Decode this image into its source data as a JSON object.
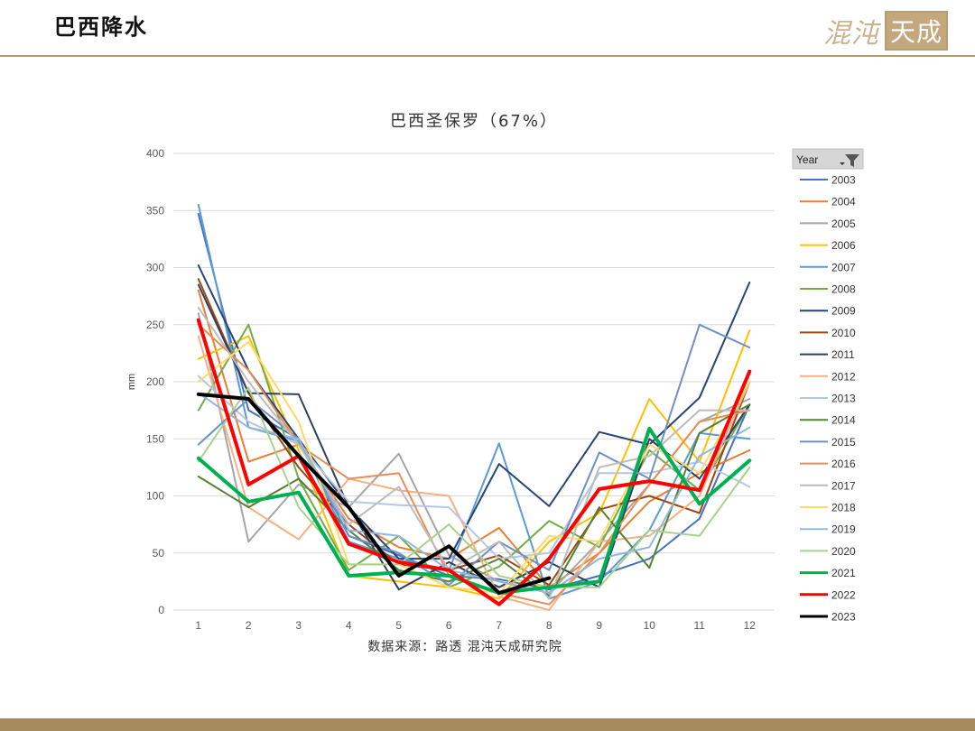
{
  "page": {
    "title": "巴西降水",
    "brand_script": "混沌",
    "brand_box": "天成"
  },
  "chart_data": {
    "type": "line",
    "title": "巴西圣保罗（67%）",
    "xlabel": "",
    "ylabel": "mm",
    "x": [
      1,
      2,
      3,
      4,
      5,
      6,
      7,
      8,
      9,
      10,
      11,
      12
    ],
    "ylim": [
      0,
      400
    ],
    "yticks": [
      0,
      50,
      100,
      150,
      200,
      250,
      300,
      350,
      400
    ],
    "grid": true,
    "legend_position": "right",
    "legend_header": "Year",
    "source": "数据来源：路透  混沌天成研究院",
    "series": [
      {
        "name": "2003",
        "color": "#4472c4",
        "width": 2,
        "values": [
          347,
          175,
          150,
          65,
          48,
          30,
          27,
          18,
          30,
          45,
          80,
          180
        ]
      },
      {
        "name": "2004",
        "color": "#ed7d31",
        "width": 2,
        "values": [
          280,
          130,
          145,
          80,
          55,
          45,
          72,
          20,
          50,
          95,
          120,
          140
        ]
      },
      {
        "name": "2005",
        "color": "#a5a5a5",
        "width": 2,
        "values": [
          260,
          60,
          110,
          90,
          137,
          48,
          25,
          15,
          60,
          110,
          165,
          185
        ]
      },
      {
        "name": "2006",
        "color": "#ffc000",
        "width": 2,
        "values": [
          220,
          240,
          140,
          30,
          25,
          20,
          10,
          60,
          85,
          185,
          130,
          245
        ]
      },
      {
        "name": "2007",
        "color": "#5b9bd5",
        "width": 2,
        "values": [
          355,
          160,
          148,
          60,
          45,
          35,
          146,
          10,
          25,
          70,
          155,
          150
        ]
      },
      {
        "name": "2008",
        "color": "#70ad47",
        "width": 2,
        "values": [
          175,
          250,
          115,
          35,
          65,
          20,
          38,
          78,
          55,
          140,
          105,
          180
        ]
      },
      {
        "name": "2009",
        "color": "#264478",
        "width": 2,
        "values": [
          302,
          210,
          150,
          90,
          45,
          45,
          128,
          91,
          156,
          145,
          186,
          287
        ]
      },
      {
        "name": "2010",
        "color": "#9e480e",
        "width": 2,
        "values": [
          290,
          190,
          125,
          75,
          40,
          35,
          48,
          22,
          88,
          100,
          85,
          200
        ]
      },
      {
        "name": "2011",
        "color": "#2f3f5f",
        "width": 2,
        "values": [
          285,
          190,
          189,
          90,
          18,
          42,
          20,
          42,
          20,
          150,
          115,
          180
        ]
      },
      {
        "name": "2012",
        "color": "#f4b183",
        "width": 2,
        "values": [
          240,
          90,
          62,
          115,
          105,
          100,
          12,
          0,
          60,
          65,
          100,
          200
        ]
      },
      {
        "name": "2013",
        "color": "#b4c7e7",
        "width": 2,
        "values": [
          205,
          165,
          145,
          95,
          92,
          90,
          45,
          50,
          120,
          120,
          130,
          108
        ]
      },
      {
        "name": "2014",
        "color": "#548235",
        "width": 2,
        "values": [
          117,
          90,
          115,
          70,
          35,
          25,
          45,
          12,
          90,
          37,
          155,
          180
        ]
      },
      {
        "name": "2015",
        "color": "#6e8fc9",
        "width": 2,
        "values": [
          145,
          185,
          150,
          65,
          50,
          22,
          60,
          35,
          138,
          115,
          250,
          230
        ]
      },
      {
        "name": "2016",
        "color": "#e88d55",
        "width": 2,
        "values": [
          250,
          210,
          145,
          115,
          120,
          30,
          15,
          5,
          50,
          110,
          165,
          175
        ]
      },
      {
        "name": "2017",
        "color": "#bcbcbc",
        "width": 2,
        "values": [
          265,
          200,
          145,
          75,
          108,
          35,
          60,
          10,
          125,
          135,
          175,
          175
        ]
      },
      {
        "name": "2018",
        "color": "#ffd966",
        "width": 2,
        "values": [
          200,
          235,
          165,
          40,
          40,
          20,
          15,
          65,
          60,
          145,
          120,
          200
        ]
      },
      {
        "name": "2019",
        "color": "#8fb8df",
        "width": 2,
        "values": [
          190,
          160,
          150,
          70,
          65,
          35,
          25,
          15,
          45,
          55,
          135,
          160
        ]
      },
      {
        "name": "2020",
        "color": "#a9d18e",
        "width": 2,
        "values": [
          130,
          195,
          90,
          40,
          40,
          75,
          30,
          20,
          20,
          70,
          65,
          125
        ]
      },
      {
        "name": "2021",
        "color": "#00b050",
        "width": 4,
        "values": [
          133,
          95,
          103,
          30,
          33,
          30,
          15,
          20,
          25,
          159,
          93,
          131
        ]
      },
      {
        "name": "2022",
        "color": "#ff0000",
        "width": 4,
        "values": [
          254,
          110,
          135,
          58,
          42,
          35,
          5,
          45,
          106,
          113,
          105,
          209
        ]
      },
      {
        "name": "2023",
        "color": "#000000",
        "width": 4,
        "values": [
          189,
          185,
          135,
          90,
          30,
          56,
          15,
          28,
          null,
          null,
          null,
          null
        ]
      }
    ]
  }
}
